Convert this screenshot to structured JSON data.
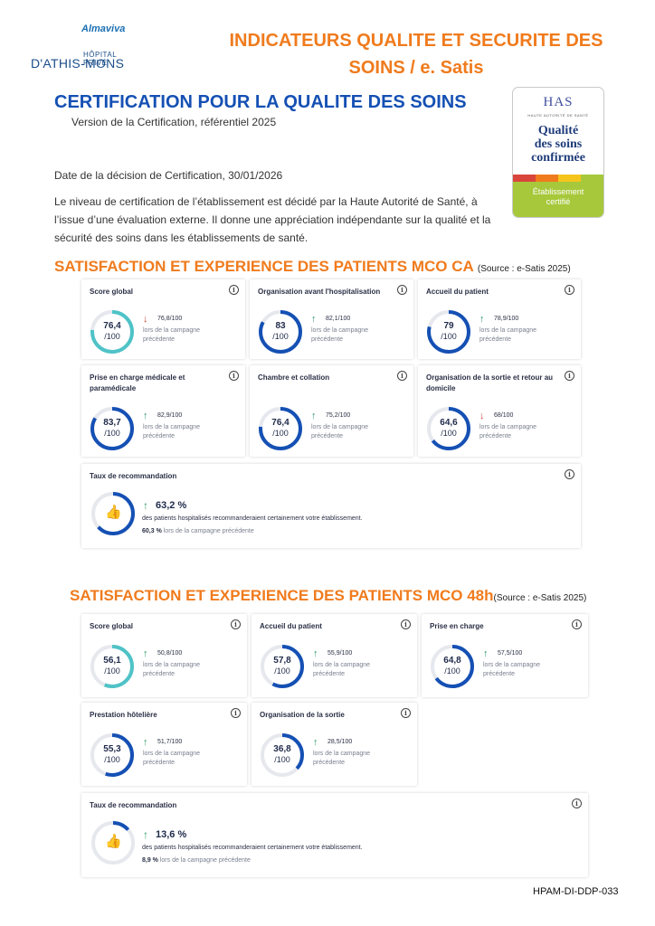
{
  "header": {
    "logo_brand": "Almaviva",
    "logo_sub": "HÔPITAL PRIVÉ",
    "logo_name": "D'ATHIS-MONS",
    "title_line1": "INDICATEURS QUALITE ET SECURITE DES",
    "title_line2": "SOINS / e. Satis"
  },
  "certification": {
    "title": "CERTIFICATION POUR LA QUALITE DES SOINS",
    "version": "Version de la Certification, référentiel 2025",
    "date": "Date de la décision de Certification, 30/01/2026",
    "text": "Le niveau de certification de l’établissement est décidé par la Haute Autorité de Santé, à l’issue d’une évaluation externe. Il donne une appréciation indépendante sur la qualité et la sécurité des soins dans les établissements de santé."
  },
  "has_badge": {
    "logo": "HAS",
    "sub": "HAUTE AUTORITÉ DE SANTÉ",
    "quality_line1": "Qualité",
    "quality_line2": "des soins",
    "quality_line3": "confirmée",
    "bottom_line1": "Établissement",
    "bottom_line2": "certifié",
    "colors": [
      "#d9453b",
      "#f07b1d",
      "#f5c51e",
      "#a6c83a"
    ]
  },
  "colors": {
    "teal": "#4fc3c7",
    "blue": "#1550b4",
    "track": "#e6e8ee",
    "orange": "#f07b1d"
  },
  "section1": {
    "title": "SATISFACTION ET EXPERIENCE DES PATIENTS MCO CA ",
    "source": "(Source : e-Satis 2025)",
    "cards": [
      {
        "label": "Score global",
        "value": "76,4",
        "total": "/100",
        "prev": "76,8/100",
        "trend": "down",
        "prev_text": "lors de la campagne précédente",
        "percent": 76.4,
        "color": "teal"
      },
      {
        "label": "Organisation avant l'hospitalisation",
        "value": "83",
        "total": "/100",
        "prev": "82,1/100",
        "trend": "up",
        "prev_text": "lors de la campagne précédente",
        "percent": 83,
        "color": "blue"
      },
      {
        "label": "Accueil du patient",
        "value": "79",
        "total": "/100",
        "prev": "78,9/100",
        "trend": "up",
        "prev_text": "lors de la campagne précédente",
        "percent": 79,
        "color": "blue"
      },
      {
        "label": "Prise en charge médicale et paramédicale",
        "value": "83,7",
        "total": "/100",
        "prev": "82,9/100",
        "trend": "up",
        "prev_text": "lors de la campagne précédente",
        "percent": 83.7,
        "color": "blue"
      },
      {
        "label": "Chambre et collation",
        "value": "76,4",
        "total": "/100",
        "prev": "75,2/100",
        "trend": "up",
        "prev_text": "lors de la campagne précédente",
        "percent": 76.4,
        "color": "blue"
      },
      {
        "label": "Organisation de la sortie et retour au domicile",
        "value": "64,6",
        "total": "/100",
        "prev": "68/100",
        "trend": "down",
        "prev_text": "lors de la campagne précédente",
        "percent": 64.6,
        "color": "blue"
      }
    ],
    "reco": {
      "label": "Taux de recommandation",
      "value": "63,2 %",
      "desc": "des patients hospitalisés recommanderaient certainement votre établissement.",
      "prev_val": "60,3 %",
      "prev_text": " lors de la campagne précédente",
      "percent": 63.2
    }
  },
  "section2": {
    "title": "SATISFACTION ET EXPERIENCE DES PATIENTS MCO 48h",
    "source": "(Source : e-Satis 2025)",
    "cards": [
      {
        "label": "Score global",
        "value": "56,1",
        "total": "/100",
        "prev": "50,8/100",
        "trend": "up",
        "prev_text": "lors de la campagne précédente",
        "percent": 56.1,
        "color": "teal"
      },
      {
        "label": "Accueil du patient",
        "value": "57,8",
        "total": "/100",
        "prev": "55,9/100",
        "trend": "up",
        "prev_text": "lors de la campagne précédente",
        "percent": 57.8,
        "color": "blue"
      },
      {
        "label": "Prise en charge",
        "value": "64,8",
        "total": "/100",
        "prev": "57,5/100",
        "trend": "up",
        "prev_text": "lors de la campagne précédente",
        "percent": 64.8,
        "color": "blue"
      },
      {
        "label": "Prestation hôtelière",
        "value": "55,3",
        "total": "/100",
        "prev": "51,7/100",
        "trend": "up",
        "prev_text": "lors de la campagne précédente",
        "percent": 55.3,
        "color": "blue"
      },
      {
        "label": "Organisation de la sortie",
        "value": "36,8",
        "total": "/100",
        "prev": "28,5/100",
        "trend": "up",
        "prev_text": "lors de la campagne précédente",
        "percent": 36.8,
        "color": "blue"
      }
    ],
    "reco": {
      "label": "Taux de recommandation",
      "value": "13,6 %",
      "desc": "des patients hospitalisés recommanderaient certainement votre établissement.",
      "prev_val": "8,9 %",
      "prev_text": " lors de la campagne précédente",
      "percent": 13.6
    }
  },
  "footer": {
    "code": "HPAM-DI-DDP-033"
  }
}
